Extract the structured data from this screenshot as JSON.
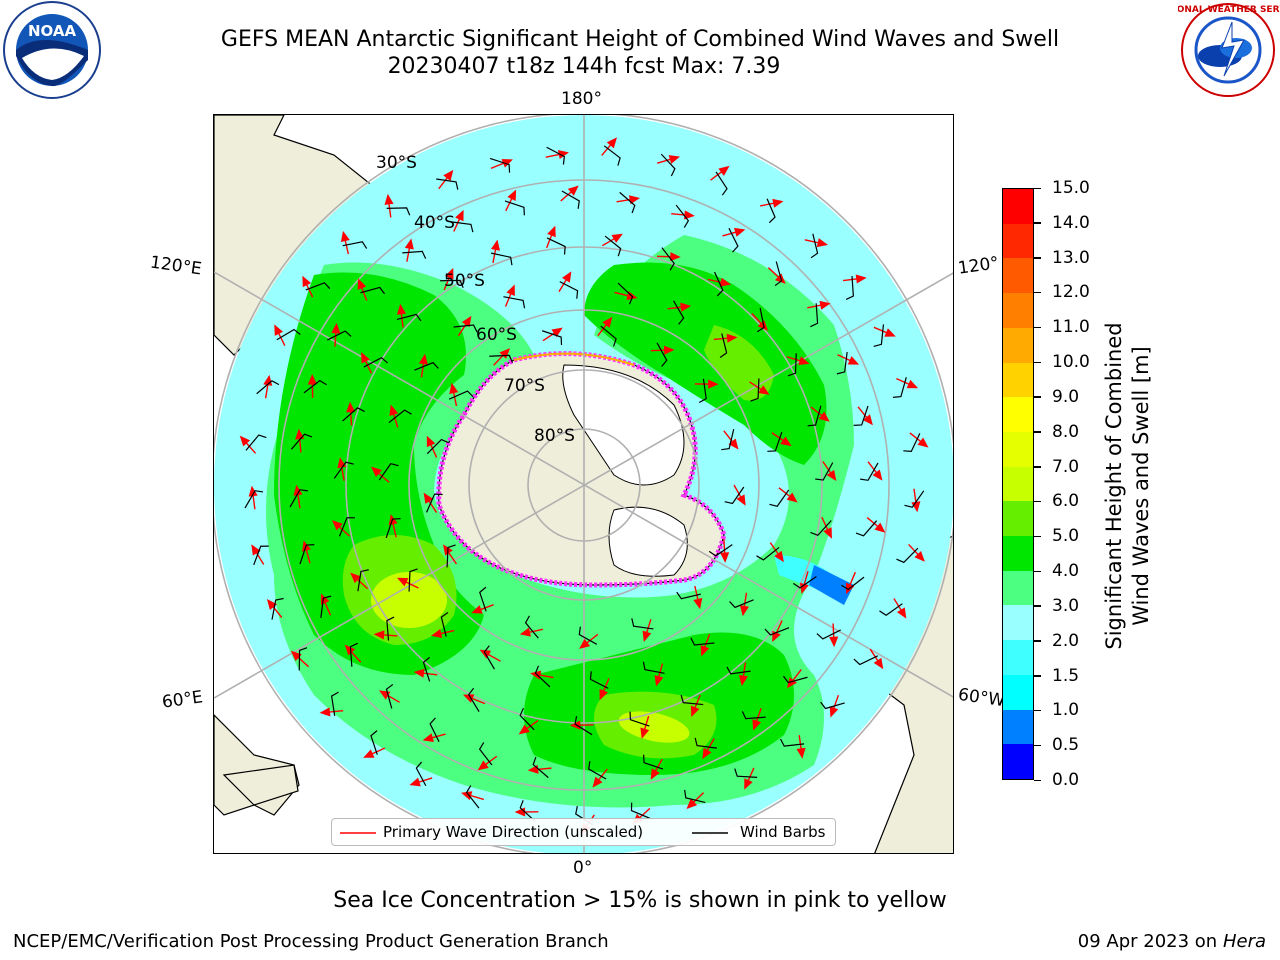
{
  "title": {
    "line1": "GEFS MEAN Antarctic Significant Height of Combined Wind Waves and Swell",
    "line2": "20230407 t18z 144h fcst   Max: 7.39"
  },
  "map": {
    "lon_labels": {
      "top": "180°",
      "bottom": "0°",
      "left_upper": "120°E",
      "left_lower": "60°E",
      "right_upper": "120°",
      "right_lower": "60°W"
    },
    "lat_labels": [
      "30°S",
      "40°S",
      "50°S",
      "60°S",
      "70°S",
      "80°S"
    ]
  },
  "legend": {
    "wave_direction": "Primary Wave Direction (unscaled)",
    "wind_barbs": "Wind Barbs",
    "wave_color": "#ff0000",
    "barb_color": "#000000"
  },
  "colorbar": {
    "label_line1": "Significant Height of Combined",
    "label_line2": "Wind Waves and Swell [m]",
    "ticks": [
      "0.0",
      "0.5",
      "1.0",
      "1.5",
      "2.0",
      "3.0",
      "4.0",
      "5.0",
      "6.0",
      "7.0",
      "8.0",
      "9.0",
      "10.0",
      "11.0",
      "12.0",
      "13.0",
      "14.0",
      "15.0"
    ],
    "colors": [
      "#0000ff",
      "#0080ff",
      "#00ffff",
      "#40ffff",
      "#99ffff",
      "#4dff80",
      "#00e600",
      "#66ee00",
      "#c8ff00",
      "#e6ff00",
      "#ffff00",
      "#ffd200",
      "#ffaa00",
      "#ff8000",
      "#ff5a00",
      "#ff2800",
      "#ff0000"
    ]
  },
  "caption": "Sea Ice Concentration > 15% is shown in pink to yellow",
  "footer": {
    "left": "NCEP/EMC/Verification Post Processing Product Generation Branch",
    "right_date": "09 Apr 2023 on ",
    "right_host": "Hera"
  },
  "logos": {
    "noaa": "NOAA",
    "nws": "NATIONAL WEATHER SERVICE"
  }
}
